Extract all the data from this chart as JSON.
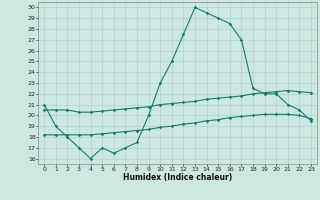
{
  "xlabel": "Humidex (Indice chaleur)",
  "xlim": [
    -0.5,
    23.5
  ],
  "ylim": [
    15.5,
    30.5
  ],
  "yticks": [
    16,
    17,
    18,
    19,
    20,
    21,
    22,
    23,
    24,
    25,
    26,
    27,
    28,
    29,
    30
  ],
  "xticks": [
    0,
    1,
    2,
    3,
    4,
    5,
    6,
    7,
    8,
    9,
    10,
    11,
    12,
    13,
    14,
    15,
    16,
    17,
    18,
    19,
    20,
    21,
    22,
    23
  ],
  "background_color": "#cce8e0",
  "grid_color": "#aacccc",
  "line_color": "#1a7a6a",
  "line1_x": [
    0,
    1,
    2,
    3,
    4,
    5,
    6,
    7,
    8,
    9,
    10,
    11,
    12,
    13,
    14,
    15,
    16,
    17,
    18,
    19,
    20,
    21,
    22,
    23
  ],
  "line1_y": [
    21.0,
    19.0,
    18.0,
    17.0,
    16.0,
    17.0,
    16.5,
    17.0,
    17.5,
    20.0,
    23.0,
    25.0,
    27.5,
    30.0,
    29.5,
    29.0,
    28.5,
    27.0,
    22.5,
    22.0,
    22.0,
    21.0,
    20.5,
    19.5
  ],
  "line2_x": [
    0,
    1,
    2,
    3,
    4,
    5,
    6,
    7,
    8,
    9,
    10,
    11,
    12,
    13,
    14,
    15,
    16,
    17,
    18,
    19,
    20,
    21,
    22,
    23
  ],
  "line2_y": [
    20.5,
    20.5,
    20.5,
    20.3,
    20.3,
    20.4,
    20.5,
    20.6,
    20.7,
    20.8,
    21.0,
    21.1,
    21.2,
    21.3,
    21.5,
    21.6,
    21.7,
    21.8,
    22.0,
    22.1,
    22.2,
    22.3,
    22.2,
    22.1
  ],
  "line3_x": [
    0,
    1,
    2,
    3,
    4,
    5,
    6,
    7,
    8,
    9,
    10,
    11,
    12,
    13,
    14,
    15,
    16,
    17,
    18,
    19,
    20,
    21,
    22,
    23
  ],
  "line3_y": [
    18.2,
    18.2,
    18.2,
    18.2,
    18.2,
    18.3,
    18.4,
    18.5,
    18.6,
    18.7,
    18.9,
    19.0,
    19.2,
    19.3,
    19.5,
    19.6,
    19.8,
    19.9,
    20.0,
    20.1,
    20.1,
    20.1,
    20.0,
    19.7
  ]
}
